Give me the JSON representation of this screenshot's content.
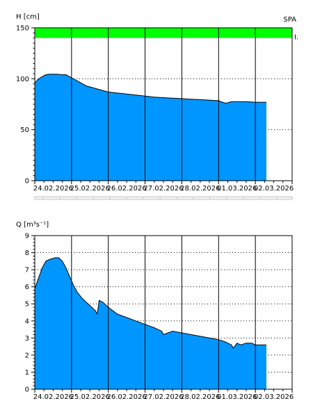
{
  "chart_data": [
    {
      "type": "area",
      "ylabel": "H [cm]",
      "station": "SPA",
      "band_label": "I.",
      "ylim": [
        0,
        150
      ],
      "yticks": [
        0,
        50,
        100,
        150
      ],
      "xticks": [
        "24.02.2026",
        "25.02.2026",
        "26.02.2026",
        "27.02.2026",
        "28.02.2026",
        "01.03.2026",
        "02.03.2026"
      ],
      "xlim": [
        0,
        7
      ],
      "grid": "dotted horizontal at ticks, solid vertical at day boundaries",
      "fill_color": "#0096ff",
      "band": {
        "from": 140,
        "to": 150,
        "color": "#00ff00"
      },
      "x": [
        0,
        0.05,
        0.15,
        0.25,
        0.3,
        0.4,
        0.5,
        0.6,
        0.75,
        0.85,
        1.0,
        1.2,
        1.4,
        1.6,
        1.8,
        2.0,
        2.25,
        2.5,
        2.75,
        3.0,
        3.25,
        3.5,
        3.75,
        4.0,
        4.25,
        4.5,
        4.75,
        5.0,
        5.1,
        5.2,
        5.35,
        5.5,
        5.75,
        6.0,
        6.15,
        6.3
      ],
      "values": [
        96,
        98,
        101,
        103,
        104,
        104.5,
        104.5,
        104.5,
        104,
        104,
        101,
        97,
        93,
        91,
        89,
        87,
        86,
        85,
        84,
        83,
        82,
        81.5,
        81,
        80.5,
        80,
        79.5,
        79,
        78.5,
        77,
        76,
        77.5,
        77.5,
        77.5,
        77,
        77,
        77
      ]
    },
    {
      "type": "area",
      "ylabel": "Q [m³s⁻¹]",
      "ylim": [
        0,
        9
      ],
      "yticks": [
        0,
        1,
        2,
        3,
        4,
        5,
        6,
        7,
        8,
        9
      ],
      "xticks": [
        "24.02.2026",
        "25.02.2026",
        "26.02.2026",
        "27.02.2026",
        "28.02.2026",
        "01.03.2026",
        "02.03.2026"
      ],
      "xlim": [
        0,
        7
      ],
      "grid": "dotted horizontal at ticks, solid vertical at day boundaries",
      "fill_color": "#0096ff",
      "x": [
        0,
        0.1,
        0.2,
        0.3,
        0.4,
        0.55,
        0.65,
        0.75,
        0.85,
        0.95,
        1.05,
        1.15,
        1.3,
        1.45,
        1.55,
        1.65,
        1.7,
        1.75,
        1.85,
        2.0,
        2.25,
        2.5,
        2.75,
        3.0,
        3.25,
        3.45,
        3.5,
        3.75,
        4.0,
        4.25,
        4.5,
        4.75,
        5.0,
        5.15,
        5.35,
        5.4,
        5.5,
        5.6,
        5.75,
        5.9,
        6.0,
        6.3
      ],
      "values": [
        5.9,
        6.5,
        7.1,
        7.5,
        7.6,
        7.7,
        7.7,
        7.5,
        7.1,
        6.6,
        6.1,
        5.7,
        5.3,
        5.0,
        4.8,
        4.6,
        4.4,
        5.2,
        5.1,
        4.8,
        4.4,
        4.2,
        4.0,
        3.8,
        3.6,
        3.4,
        3.2,
        3.4,
        3.3,
        3.2,
        3.1,
        3.0,
        2.9,
        2.8,
        2.6,
        2.4,
        2.7,
        2.6,
        2.7,
        2.7,
        2.6,
        2.6
      ]
    }
  ]
}
